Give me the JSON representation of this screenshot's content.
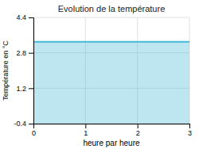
{
  "chart_data": {
    "type": "area",
    "title": "Evolution de la température",
    "x": [
      0,
      3
    ],
    "values": [
      3.3,
      3.3
    ],
    "color": "#44b8d8",
    "xlabel": "heure par heure",
    "ylabel": "Température en °C",
    "xlim": [
      0,
      3
    ],
    "ylim": [
      -0.4,
      4.4
    ],
    "xticks": [
      0,
      1,
      2,
      3
    ],
    "yticks": [
      -0.4,
      1.2,
      2.8,
      4.4
    ],
    "grid": true
  }
}
